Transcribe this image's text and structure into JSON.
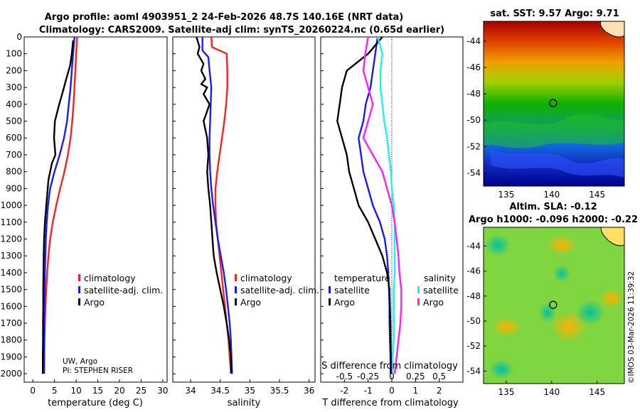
{
  "figure": {
    "title_line1": "Argo profile: aoml 4903951_2 24-Feb-2026 48.7S 140.16E (NRT data)",
    "title_line2": "Climatology: CARS2009. Satellite-adj clim: synTS_20260224.nc (0.65d earlier)",
    "credit": "UW, Argo",
    "pi": "PI: STEPHEN RISER",
    "watermark": "©IMOS 03-Mar-2026 11:39:32",
    "colors": {
      "climatology": "#ff2020",
      "satellite": "#1a1aff",
      "argo": "#000000",
      "cyan": "#20f0f0",
      "magenta": "#ff20ff"
    }
  },
  "chart_data": [
    {
      "type": "line",
      "title": "",
      "xlabel": "temperature (deg C)",
      "ylabel": "",
      "xlim": [
        -2,
        31
      ],
      "ylim": [
        2050,
        0
      ],
      "xticks": [
        0,
        5,
        10,
        15,
        20,
        25,
        30
      ],
      "yticks": [
        0,
        100,
        200,
        300,
        400,
        500,
        600,
        700,
        800,
        900,
        1000,
        1100,
        1200,
        1300,
        1400,
        1500,
        1600,
        1700,
        1800,
        1900,
        2000
      ],
      "legend": [
        "climatology",
        "satellite-adj. clim.",
        "Argo"
      ],
      "series": [
        {
          "name": "climatology",
          "color": "#ff2020",
          "x": [
            10.2,
            10.0,
            9.8,
            9.6,
            9.4,
            9.1,
            8.7,
            8.1,
            7.3,
            6.3,
            5.4,
            4.6,
            4.0,
            3.6,
            3.3,
            3.1,
            2.9,
            2.8,
            2.7,
            2.65,
            2.6
          ],
          "y": [
            0,
            100,
            200,
            300,
            400,
            500,
            600,
            700,
            800,
            900,
            1000,
            1100,
            1200,
            1300,
            1400,
            1500,
            1600,
            1700,
            1800,
            1900,
            2000
          ]
        },
        {
          "name": "satellite-adj. clim.",
          "color": "#1a1aff",
          "x": [
            9.6,
            9.3,
            9.0,
            8.7,
            8.3,
            7.9,
            7.2,
            6.2,
            5.0,
            4.0,
            3.5,
            3.2,
            3.0,
            2.9,
            2.8,
            2.75,
            2.7,
            2.65,
            2.6,
            2.6,
            2.6
          ],
          "y": [
            0,
            100,
            200,
            300,
            400,
            500,
            600,
            700,
            800,
            900,
            1000,
            1100,
            1200,
            1300,
            1400,
            1500,
            1600,
            1700,
            1800,
            1900,
            2000
          ]
        },
        {
          "name": "Argo",
          "color": "#000000",
          "x": [
            9.3,
            9.0,
            8.6,
            7.7,
            7.2,
            6.1,
            5.1,
            4.9,
            5.2,
            4.4,
            3.6,
            3.1,
            2.8,
            2.6,
            2.5,
            2.45,
            2.4,
            2.4,
            2.35,
            2.35,
            2.3,
            2.3
          ],
          "y": [
            20,
            100,
            170,
            250,
            300,
            400,
            500,
            600,
            700,
            750,
            850,
            1000,
            1100,
            1200,
            1300,
            1400,
            1500,
            1600,
            1700,
            1800,
            1900,
            2000
          ]
        }
      ]
    },
    {
      "type": "line",
      "xlabel": "salinity",
      "xlim": [
        33.7,
        36.1
      ],
      "ylim": [
        2050,
        0
      ],
      "xticks": [
        34,
        34.5,
        35,
        35.5,
        36
      ],
      "xticklabels": [
        "34",
        "34.5",
        "35",
        "35.5",
        "36"
      ],
      "legend": [
        "climatology",
        "satellite-adj. clim.",
        "Argo"
      ],
      "series": [
        {
          "name": "climatology",
          "color": "#ff2020",
          "x": [
            34.35,
            34.36,
            34.61,
            34.62,
            34.62,
            34.6,
            34.57,
            34.53,
            34.49,
            34.45,
            34.42,
            34.42,
            34.43,
            34.46,
            34.49,
            34.52,
            34.55,
            34.58,
            34.61,
            34.64,
            34.66,
            34.68
          ],
          "y": [
            0,
            60,
            100,
            200,
            300,
            400,
            500,
            600,
            700,
            800,
            900,
            1000,
            1100,
            1200,
            1300,
            1400,
            1500,
            1600,
            1700,
            1800,
            1900,
            2000
          ]
        },
        {
          "name": "satellite-adj. clim.",
          "color": "#1a1aff",
          "x": [
            34.2,
            34.2,
            34.3,
            34.32,
            34.35,
            34.34,
            34.33,
            34.32,
            34.32,
            34.33,
            34.35,
            34.38,
            34.42,
            34.46,
            34.51,
            34.56,
            34.6,
            34.63,
            34.66,
            34.68,
            34.69,
            34.7
          ],
          "y": [
            0,
            80,
            120,
            200,
            300,
            400,
            500,
            600,
            700,
            800,
            900,
            1000,
            1100,
            1200,
            1300,
            1400,
            1500,
            1600,
            1700,
            1800,
            1900,
            2000
          ]
        },
        {
          "name": "Argo",
          "color": "#000000",
          "x": [
            34.1,
            34.15,
            34.12,
            34.22,
            34.18,
            34.25,
            34.18,
            34.28,
            34.22,
            34.32,
            34.22,
            34.28,
            34.3,
            34.28,
            34.3,
            34.33,
            34.35,
            34.37,
            34.39,
            34.44,
            34.5,
            34.56,
            34.61,
            34.65,
            34.68,
            34.69
          ],
          "y": [
            0,
            60,
            100,
            160,
            200,
            250,
            280,
            300,
            340,
            400,
            500,
            600,
            700,
            800,
            900,
            1000,
            1100,
            1200,
            1300,
            1400,
            1500,
            1600,
            1700,
            1800,
            1900,
            2000
          ]
        }
      ]
    },
    {
      "type": "line",
      "xlabel": "T difference from climatology",
      "xlabel2": "S difference from climatology",
      "xlim": [
        -3.0,
        3.0
      ],
      "ylim": [
        2050,
        0
      ],
      "xticks": [
        -2,
        -1,
        0,
        1,
        2
      ],
      "xticks2": [
        -0.5,
        -0.25,
        0,
        0.25,
        0.5
      ],
      "xticklabels2": [
        "-0.5",
        "-0.25",
        "0",
        "0.25",
        "0.5"
      ],
      "legend_temperature": "temperature",
      "legend_salinity": "salinity",
      "legend": [
        "satellite",
        "Argo",
        "satellite",
        "Argo"
      ],
      "series": [
        {
          "name": "temperature satellite",
          "color": "#1a1aff",
          "x": [
            -0.6,
            -0.7,
            -0.8,
            -0.9,
            -1.1,
            -1.2,
            -1.4,
            -1.3,
            -1.2,
            -1.0,
            -0.8,
            -0.5,
            -0.3,
            -0.2,
            -0.15,
            -0.12,
            -0.1,
            -0.1,
            -0.08,
            -0.06,
            -0.05
          ],
          "y": [
            0,
            100,
            200,
            300,
            400,
            500,
            600,
            700,
            800,
            900,
            1000,
            1100,
            1200,
            1300,
            1400,
            1500,
            1600,
            1700,
            1800,
            1900,
            2000
          ]
        },
        {
          "name": "temperature Argo",
          "color": "#000000",
          "x": [
            -0.4,
            -1.0,
            -1.9,
            -2.1,
            -2.2,
            -2.3,
            -2.1,
            -1.9,
            -1.8,
            -1.6,
            -1.4,
            -1.0,
            -0.7,
            -0.4,
            -0.2,
            -0.1,
            -0.08,
            -0.06,
            -0.05,
            -0.04,
            -0.04
          ],
          "y": [
            0,
            100,
            200,
            300,
            400,
            500,
            600,
            700,
            800,
            900,
            1000,
            1100,
            1200,
            1300,
            1400,
            1500,
            1600,
            1700,
            1800,
            1900,
            2000
          ]
        },
        {
          "name": "salinity satellite",
          "color": "#20f0f0",
          "x": [
            -0.15,
            -0.1,
            -0.12,
            -0.12,
            -0.1,
            -0.08,
            -0.05,
            -0.03,
            -0.01,
            0.0,
            0.02,
            0.03,
            0.03,
            0.03,
            0.03,
            0.02,
            0.02,
            0.02,
            0.02,
            0.01,
            0.01
          ],
          "y": [
            0,
            100,
            200,
            300,
            400,
            500,
            600,
            700,
            800,
            900,
            1000,
            1100,
            1200,
            1300,
            1400,
            1500,
            1600,
            1700,
            1800,
            1900,
            2000
          ]
        },
        {
          "name": "salinity Argo",
          "color": "#ff20ff",
          "x": [
            -0.25,
            -0.28,
            -0.3,
            -0.25,
            -0.2,
            -0.25,
            -0.3,
            -0.2,
            -0.1,
            -0.05,
            0.0,
            0.03,
            0.05,
            0.07,
            0.08,
            0.1,
            0.1,
            0.09,
            0.07,
            0.05,
            0.03
          ],
          "y": [
            0,
            100,
            200,
            300,
            400,
            500,
            600,
            700,
            800,
            900,
            1000,
            1100,
            1200,
            1300,
            1400,
            1500,
            1600,
            1700,
            1800,
            1900,
            2000
          ]
        }
      ]
    },
    {
      "type": "heatmap",
      "title": "sat. SST: 9.57 Argo: 9.71",
      "xlim": [
        132.5,
        148
      ],
      "ylim": [
        -55,
        -42.5
      ],
      "xticks": [
        135,
        140,
        145
      ],
      "yticks": [
        -44,
        -46,
        -48,
        -50,
        -52,
        -54
      ],
      "marker": [
        140.16,
        -48.7
      ]
    },
    {
      "type": "heatmap",
      "title": "Altim. SLA: -0.12",
      "title2": "Argo h1000: -0.096 h2000: -0.22",
      "xlim": [
        132.5,
        148
      ],
      "ylim": [
        -55,
        -42.5
      ],
      "xticks": [
        135,
        140,
        145
      ],
      "yticks": [
        -44,
        -46,
        -48,
        -50,
        -52,
        -54
      ],
      "marker": [
        140.16,
        -48.7
      ]
    }
  ]
}
